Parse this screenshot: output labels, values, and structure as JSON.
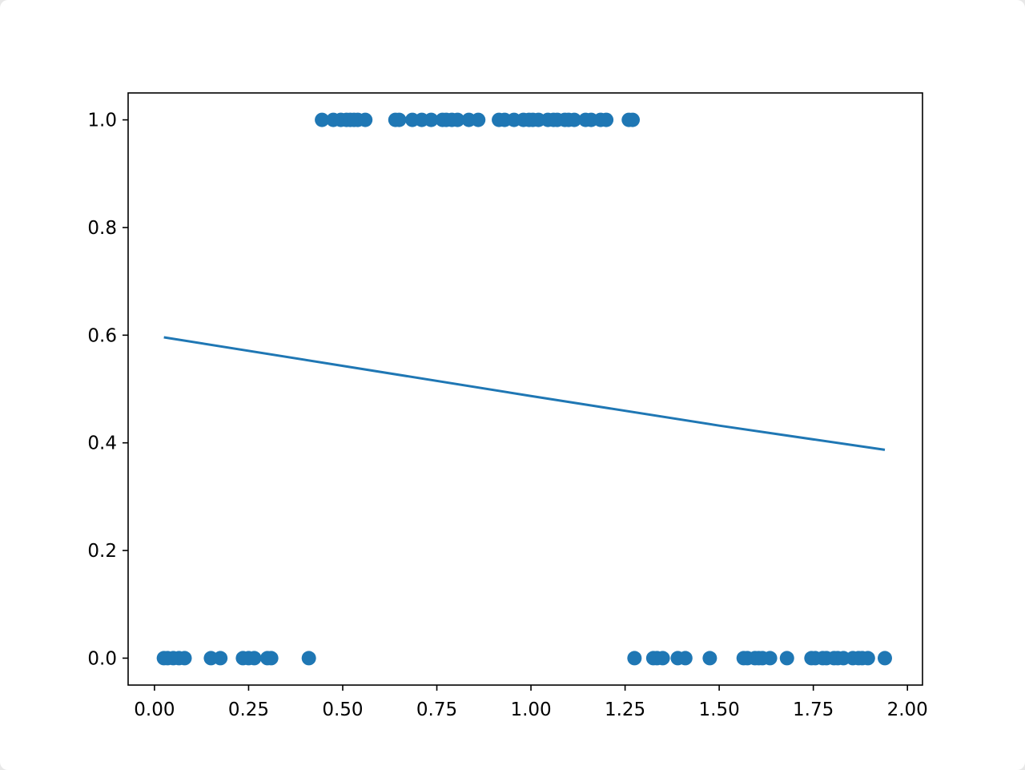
{
  "chart_data": {
    "type": "scatter",
    "title": "",
    "xlabel": "",
    "ylabel": "",
    "xlim": [
      -0.07,
      2.04
    ],
    "ylim": [
      -0.05,
      1.05
    ],
    "grid": false,
    "x_ticks": [
      0.0,
      0.25,
      0.5,
      0.75,
      1.0,
      1.25,
      1.5,
      1.75,
      2.0
    ],
    "x_tick_labels": [
      "0.00",
      "0.25",
      "0.50",
      "0.75",
      "1.00",
      "1.25",
      "1.50",
      "1.75",
      "2.00"
    ],
    "y_ticks": [
      0.0,
      0.2,
      0.4,
      0.6,
      0.8,
      1.0
    ],
    "y_tick_labels": [
      "0.0",
      "0.2",
      "0.4",
      "0.6",
      "0.8",
      "1.0"
    ],
    "series": [
      {
        "kind": "scatter",
        "color": "#1f77b4",
        "points": [
          [
            0.025,
            0
          ],
          [
            0.035,
            0
          ],
          [
            0.05,
            0
          ],
          [
            0.065,
            0
          ],
          [
            0.08,
            0
          ],
          [
            0.15,
            0
          ],
          [
            0.175,
            0
          ],
          [
            0.235,
            0
          ],
          [
            0.25,
            0
          ],
          [
            0.265,
            0
          ],
          [
            0.3,
            0
          ],
          [
            0.31,
            0
          ],
          [
            0.41,
            0
          ],
          [
            1.275,
            0
          ],
          [
            1.325,
            0
          ],
          [
            1.335,
            0
          ],
          [
            1.35,
            0
          ],
          [
            1.39,
            0
          ],
          [
            1.41,
            0
          ],
          [
            1.475,
            0
          ],
          [
            1.565,
            0
          ],
          [
            1.575,
            0
          ],
          [
            1.595,
            0
          ],
          [
            1.605,
            0
          ],
          [
            1.615,
            0
          ],
          [
            1.635,
            0
          ],
          [
            1.68,
            0
          ],
          [
            1.745,
            0
          ],
          [
            1.755,
            0
          ],
          [
            1.775,
            0
          ],
          [
            1.785,
            0
          ],
          [
            1.805,
            0
          ],
          [
            1.815,
            0
          ],
          [
            1.83,
            0
          ],
          [
            1.855,
            0
          ],
          [
            1.87,
            0
          ],
          [
            1.88,
            0
          ],
          [
            1.895,
            0
          ],
          [
            1.94,
            0
          ],
          [
            0.445,
            1
          ],
          [
            0.475,
            1
          ],
          [
            0.495,
            1
          ],
          [
            0.51,
            1
          ],
          [
            0.52,
            1
          ],
          [
            0.53,
            1
          ],
          [
            0.54,
            1
          ],
          [
            0.56,
            1
          ],
          [
            0.64,
            1
          ],
          [
            0.65,
            1
          ],
          [
            0.685,
            1
          ],
          [
            0.71,
            1
          ],
          [
            0.735,
            1
          ],
          [
            0.765,
            1
          ],
          [
            0.775,
            1
          ],
          [
            0.79,
            1
          ],
          [
            0.805,
            1
          ],
          [
            0.835,
            1
          ],
          [
            0.86,
            1
          ],
          [
            0.915,
            1
          ],
          [
            0.93,
            1
          ],
          [
            0.955,
            1
          ],
          [
            0.98,
            1
          ],
          [
            0.995,
            1
          ],
          [
            1.005,
            1
          ],
          [
            1.02,
            1
          ],
          [
            1.045,
            1
          ],
          [
            1.06,
            1
          ],
          [
            1.07,
            1
          ],
          [
            1.09,
            1
          ],
          [
            1.1,
            1
          ],
          [
            1.115,
            1
          ],
          [
            1.145,
            1
          ],
          [
            1.16,
            1
          ],
          [
            1.185,
            1
          ],
          [
            1.2,
            1
          ],
          [
            1.26,
            1
          ],
          [
            1.27,
            1
          ]
        ]
      },
      {
        "kind": "line",
        "color": "#1f77b4",
        "x": [
          0.025,
          0.5,
          1.0,
          1.5,
          1.94
        ],
        "y": [
          0.596,
          0.543,
          0.487,
          0.432,
          0.387
        ]
      }
    ]
  }
}
